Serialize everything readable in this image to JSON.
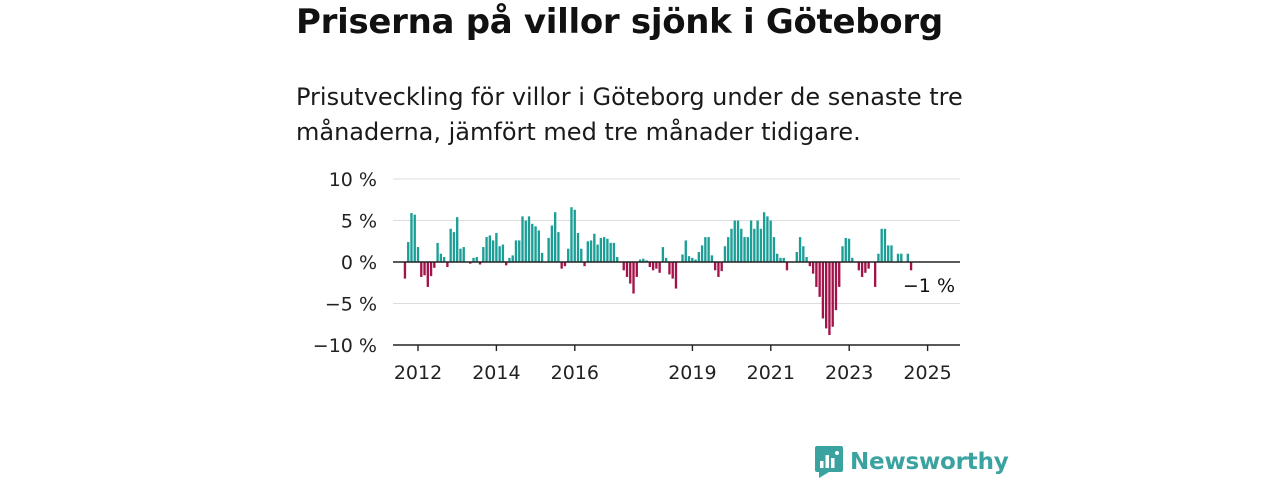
{
  "title": "Priserna på villor sjönk i Göteborg",
  "subtitle": "Prisutveckling för villor i Göteborg under de senaste tre månaderna, jämfört med tre månader tidigare.",
  "brand": {
    "name": "Newsworthy",
    "logo_icon": "newsworthy-logo-icon",
    "color": "#3aa3a0"
  },
  "colors": {
    "positive": "#1a9e96",
    "negative": "#a3134a",
    "grid": "#dddddd",
    "axis": "#222222"
  },
  "chart_data": {
    "type": "bar",
    "title": "",
    "xlabel": "",
    "ylabel": "",
    "ylim": [
      -10,
      10
    ],
    "yticks": [
      10,
      5,
      0,
      -5,
      -10
    ],
    "ytick_labels": [
      "10 %",
      "5 %",
      "0 %",
      "−5 %",
      "−10 %"
    ],
    "xtick_labels": [
      "2012",
      "2014",
      "2016",
      "2019",
      "2021",
      "2023",
      "2025"
    ],
    "xtick_positions": [
      2012,
      2014,
      2016,
      2019,
      2021,
      2023,
      2025
    ],
    "grid": true,
    "annotation": {
      "text": "−1 %",
      "x": 2025.0,
      "y": -1
    },
    "start": 2011.667,
    "step": 0.0833,
    "values": [
      -2,
      2.4,
      5.9,
      5.7,
      1.8,
      -1.8,
      -1.6,
      -3,
      -1.7,
      -0.7,
      2.3,
      1,
      0.6,
      -0.6,
      4,
      3.6,
      5.4,
      1.6,
      1.8,
      0,
      -0.2,
      0.5,
      0.6,
      -0.3,
      1.8,
      3,
      3.2,
      2.6,
      3.5,
      1.9,
      2.1,
      -0.4,
      0.5,
      0.8,
      2.6,
      2.6,
      5.5,
      5,
      5.5,
      4.6,
      4.3,
      3.8,
      1.1,
      0,
      2.9,
      4.4,
      6,
      3.6,
      -0.8,
      -0.5,
      1.6,
      6.6,
      6.3,
      3.5,
      1.6,
      -0.5,
      2.5,
      2.6,
      3.4,
      2.1,
      2.9,
      3,
      2.8,
      2.3,
      2.3,
      0.6,
      0,
      -1,
      -1.8,
      -2.6,
      -3.8,
      -1.8,
      0.3,
      0.4,
      0.2,
      -0.6,
      -1,
      -0.8,
      -1.3,
      1.8,
      0.5,
      -1.5,
      -2,
      -3.2,
      0,
      0.9,
      2.6,
      0.7,
      0.5,
      0.3,
      1.2,
      2,
      3,
      3,
      0.8,
      -1,
      -1.8,
      -1.1,
      1.9,
      3,
      4,
      5,
      5,
      4,
      3,
      3,
      5,
      4,
      5,
      4,
      6,
      5.5,
      5,
      3,
      1,
      0.5,
      0.5,
      -1,
      0,
      0,
      1.2,
      3,
      1.9,
      0.6,
      -0.5,
      -1.4,
      -3,
      -4.2,
      -6.8,
      -8,
      -8.8,
      -7.8,
      -5.8,
      -3,
      1.9,
      2.9,
      2.8,
      0.5,
      0,
      -1,
      -1.8,
      -1.3,
      -0.8,
      0,
      -3,
      1,
      4,
      4,
      2,
      2,
      0,
      1,
      1,
      0,
      1,
      -1
    ]
  }
}
